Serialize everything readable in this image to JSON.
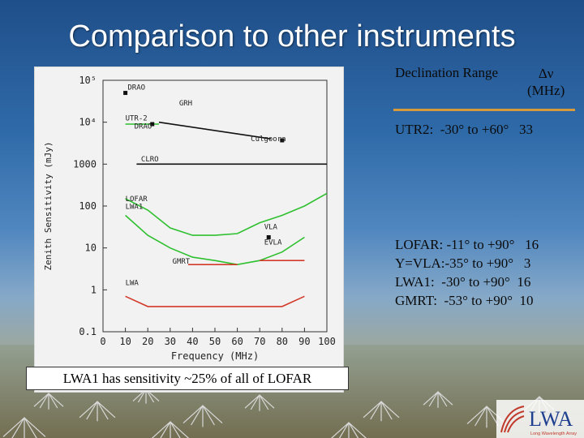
{
  "slide": {
    "title": "Comparison to other instruments",
    "caption": "LWA1 has sensitivity ~25% of all of LOFAR",
    "table": {
      "col1_header": "Declination Range",
      "col2_header_symbol": "Δν",
      "col2_header_unit": "(MHz)",
      "rows": [
        {
          "text": "UTR2:  -30° to +60°   33"
        },
        {
          "text": "LOFAR: -11° to +90°   16"
        },
        {
          "text": "Y=VLA:-35° to +90°   3"
        },
        {
          "text": "LWA1:  -30° to +90°  16"
        },
        {
          "text": "GMRT:  -53° to +90°  10"
        }
      ]
    },
    "logo": {
      "letters": "LWA",
      "tagline": "Long Wavelength Array"
    }
  },
  "colors": {
    "title": "#ffffff",
    "accent_rule": "#d69a3c",
    "green": "#2ec02e",
    "red": "#d43a2a",
    "black": "#111111"
  },
  "chart_data": {
    "type": "line",
    "xlabel": "Frequency (MHz)",
    "ylabel": "Zenith Sensitivity (mJy)",
    "x_ticks": [
      "0",
      "10",
      "20",
      "30",
      "40",
      "50",
      "60",
      "70",
      "80",
      "90",
      "100"
    ],
    "y_ticks": [
      {
        "v": 0.1,
        "t": "0.1"
      },
      {
        "v": 1,
        "t": "1"
      },
      {
        "v": 10,
        "t": "10"
      },
      {
        "v": 100,
        "t": "100"
      },
      {
        "v": 1000,
        "t": "1000"
      },
      {
        "v": 10000,
        "t": "10⁴"
      },
      {
        "v": 100000,
        "t": "10⁵"
      }
    ],
    "xlim": [
      0,
      100
    ],
    "ylim": [
      0.1,
      100000
    ],
    "yscale": "log",
    "series": [
      {
        "name": "GRH",
        "color": "#111111",
        "points": [
          [
            25,
            10000
          ],
          [
            75,
            4000
          ]
        ]
      },
      {
        "name": "UTR-2",
        "color": "#2ec02e",
        "points": [
          [
            10,
            9000
          ],
          [
            25,
            9000
          ]
        ]
      },
      {
        "name": "CLRO",
        "color": "#111111",
        "points": [
          [
            15,
            1000
          ],
          [
            100,
            1000
          ]
        ]
      },
      {
        "name": "LOFAR",
        "color": "#2ec02e",
        "points": [
          [
            10,
            150
          ],
          [
            20,
            80
          ],
          [
            30,
            30
          ],
          [
            40,
            20
          ],
          [
            50,
            20
          ],
          [
            60,
            22
          ],
          [
            70,
            40
          ],
          [
            80,
            60
          ],
          [
            90,
            100
          ],
          [
            100,
            200
          ]
        ]
      },
      {
        "name": "LWA1",
        "color": "#2ec02e",
        "points": [
          [
            10,
            60
          ],
          [
            20,
            20
          ],
          [
            30,
            10
          ],
          [
            40,
            6
          ],
          [
            50,
            5
          ],
          [
            60,
            4
          ],
          [
            70,
            5
          ],
          [
            80,
            8
          ],
          [
            90,
            18
          ]
        ]
      },
      {
        "name": "GMRT",
        "color": "#d43a2a",
        "points": [
          [
            38,
            4
          ],
          [
            60,
            4
          ]
        ]
      },
      {
        "name": "EVLA",
        "color": "#d43a2a",
        "points": [
          [
            70,
            5
          ],
          [
            90,
            5
          ]
        ]
      },
      {
        "name": "LWA",
        "color": "#d43a2a",
        "points": [
          [
            10,
            0.7
          ],
          [
            20,
            0.4
          ],
          [
            80,
            0.4
          ],
          [
            90,
            0.7
          ]
        ]
      }
    ],
    "points": [
      {
        "name": "DRAO",
        "x": 22,
        "y": 9000
      },
      {
        "name": "DRAO",
        "x": 10,
        "y": 50000
      },
      {
        "name": "Culgoora",
        "x": 80,
        "y": 3700
      },
      {
        "name": "VLA",
        "x": 74,
        "y": 18
      }
    ],
    "labels": [
      {
        "text": "DRAO",
        "x": 11,
        "y": 60000
      },
      {
        "text": "GRH",
        "x": 34,
        "y": 25000
      },
      {
        "text": "UTR-2",
        "x": 10,
        "y": 11000
      },
      {
        "text": "DRAO",
        "x": 14,
        "y": 7000
      },
      {
        "text": "Culgoora",
        "x": 66,
        "y": 3500
      },
      {
        "text": "CLRO",
        "x": 17,
        "y": 1150
      },
      {
        "text": "LOFAR",
        "x": 10,
        "y": 130
      },
      {
        "text": "LWA1",
        "x": 10,
        "y": 85
      },
      {
        "text": "VLA",
        "x": 72,
        "y": 28
      },
      {
        "text": "EVLA",
        "x": 72,
        "y": 12
      },
      {
        "text": "GMRT",
        "x": 31,
        "y": 4.2
      },
      {
        "text": "LWA",
        "x": 10,
        "y": 1.3
      }
    ]
  }
}
